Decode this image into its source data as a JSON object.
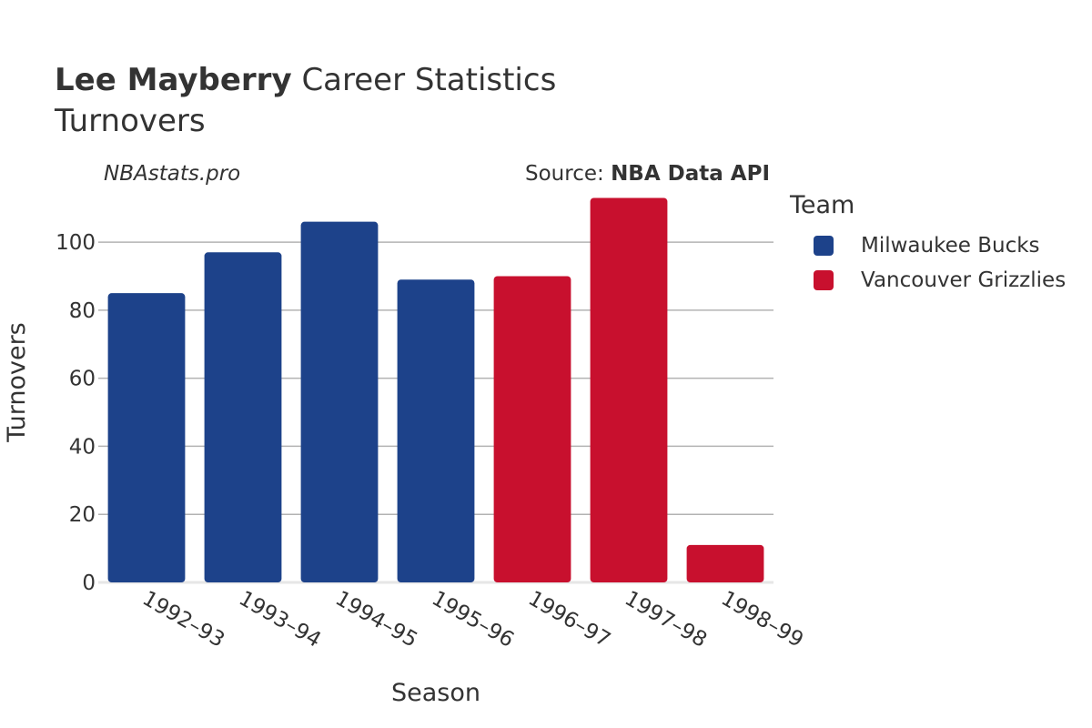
{
  "title": {
    "player": "Lee Mayberry",
    "rest": "Career Statistics",
    "subtitle": "Turnovers"
  },
  "credits": {
    "watermark": "NBAstats.pro",
    "source_prefix": "Source: ",
    "source_name": "NBA Data API"
  },
  "legend": {
    "title": "Team",
    "items": [
      {
        "label": "Milwaukee Bucks",
        "color": "#1d428a"
      },
      {
        "label": "Vancouver Grizzlies",
        "color": "#c8102e"
      }
    ]
  },
  "chart_data": {
    "type": "bar",
    "xlabel": "Season",
    "ylabel": "Turnovers",
    "ylim": [
      0,
      115
    ],
    "yticks": [
      0,
      20,
      40,
      60,
      80,
      100
    ],
    "grid": true,
    "legend_position": "right",
    "categories": [
      "1992–93",
      "1993–94",
      "1994–95",
      "1995–96",
      "1996–97",
      "1997–98",
      "1998–99"
    ],
    "values": [
      85,
      97,
      106,
      89,
      90,
      113,
      11
    ],
    "teams": [
      "Milwaukee Bucks",
      "Milwaukee Bucks",
      "Milwaukee Bucks",
      "Milwaukee Bucks",
      "Vancouver Grizzlies",
      "Vancouver Grizzlies",
      "Vancouver Grizzlies"
    ],
    "series": [
      {
        "name": "Milwaukee Bucks",
        "color": "#1d428a",
        "values": [
          85,
          97,
          106,
          89,
          null,
          null,
          null
        ]
      },
      {
        "name": "Vancouver Grizzlies",
        "color": "#c8102e",
        "values": [
          null,
          null,
          null,
          null,
          90,
          113,
          11
        ]
      }
    ]
  }
}
